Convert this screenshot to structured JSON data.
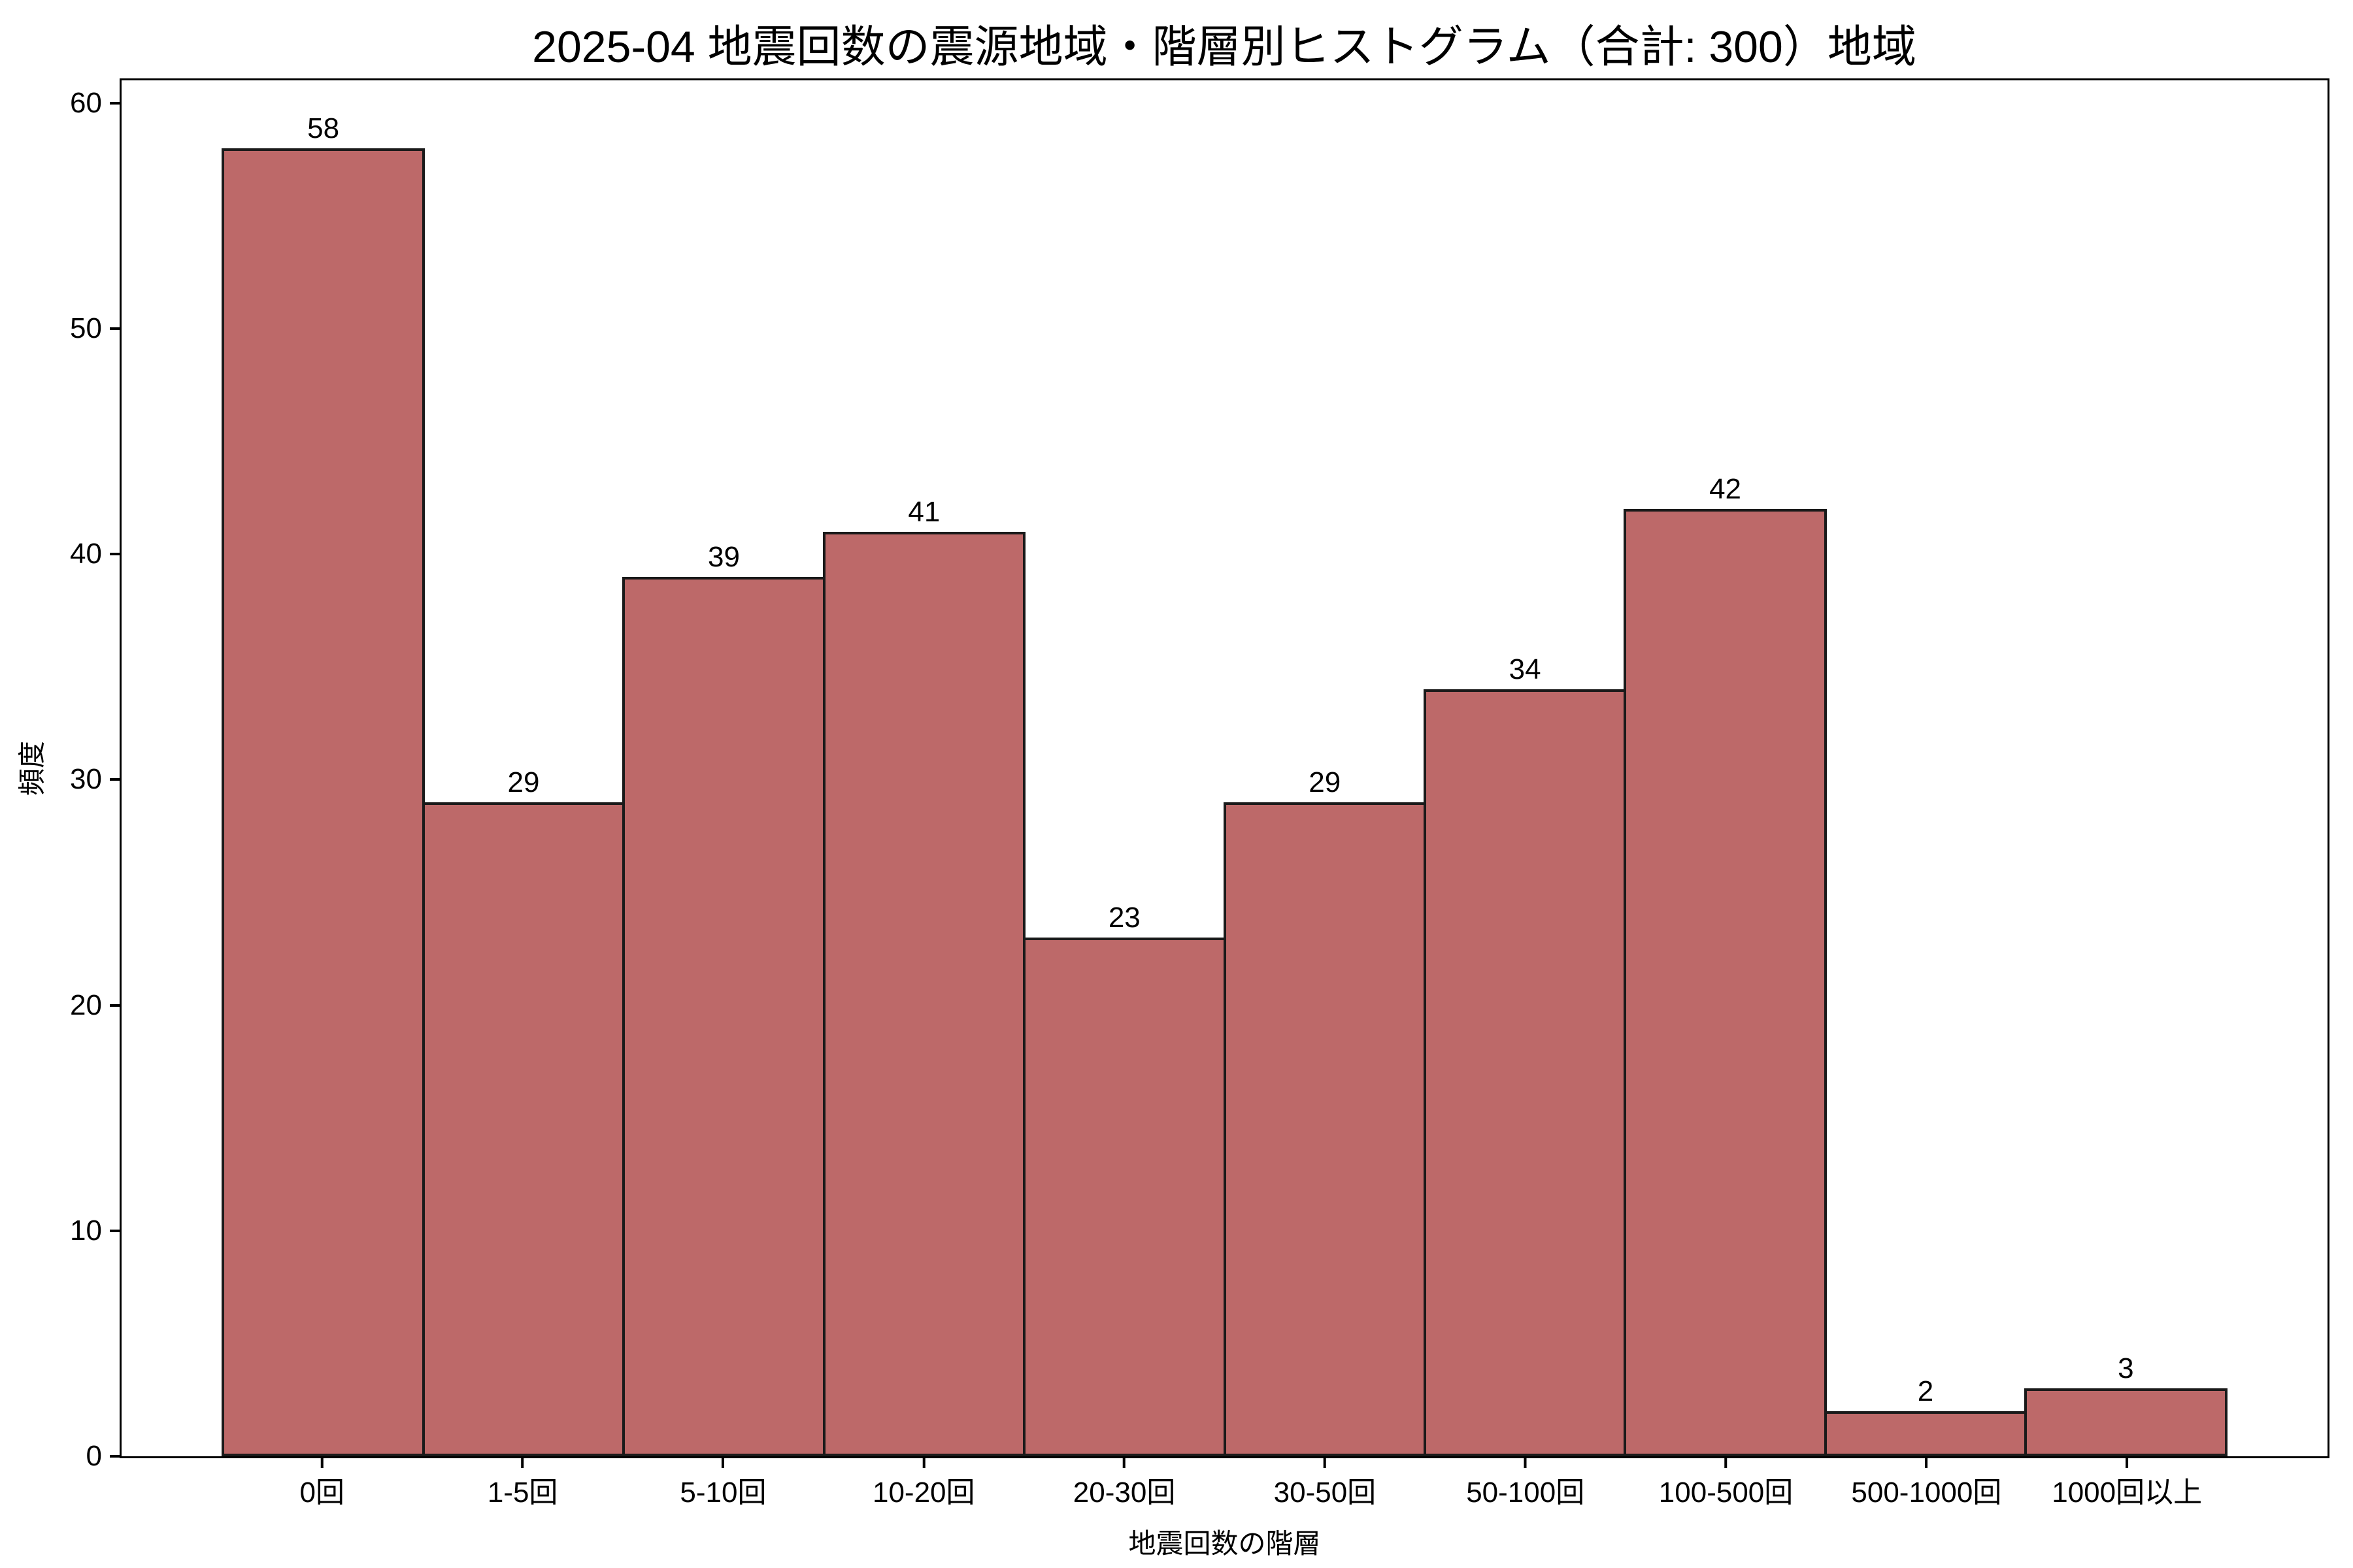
{
  "title": "2025-04 地震回数の震源地域・階層別ヒストグラム（合計: 300）地域",
  "total_label_value": "300",
  "chart_data": {
    "type": "bar",
    "title": "2025-04 地震回数の震源地域・階層別ヒストグラム（合計: 300）地域",
    "categories": [
      "0回",
      "1-5回",
      "5-10回",
      "10-20回",
      "20-30回",
      "30-50回",
      "50-100回",
      "100-500回",
      "500-1000回",
      "1000回以上"
    ],
    "values": [
      58,
      29,
      39,
      41,
      23,
      29,
      34,
      42,
      2,
      3
    ],
    "total": 300,
    "xlabel": "地震回数の階層",
    "ylabel": "頻度",
    "ylim": [
      0,
      61
    ],
    "yticks": [
      0,
      10,
      20,
      30,
      40,
      50,
      60
    ],
    "grid": false,
    "legend": "none",
    "value_labels_shown": true,
    "bar_color": "#bd6969",
    "bar_edge_color": "#1a1a1a",
    "axis_color": "#000000",
    "background_color": "#ffffff"
  }
}
